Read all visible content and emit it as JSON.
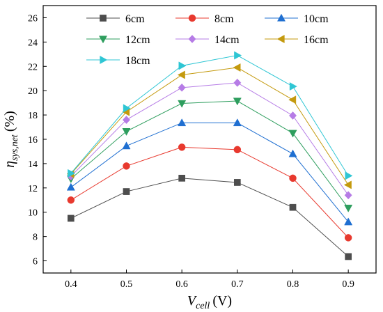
{
  "chart_data": {
    "type": "line",
    "x": [
      0.4,
      0.5,
      0.6,
      0.7,
      0.8,
      0.9
    ],
    "xlim": [
      0.35,
      0.95
    ],
    "ylim": [
      5,
      27
    ],
    "xticks": [
      "0.4",
      "0.5",
      "0.6",
      "0.7",
      "0.8",
      "0.9"
    ],
    "yticks": [
      "6",
      "8",
      "10",
      "12",
      "14",
      "16",
      "18",
      "20",
      "22",
      "24",
      "26"
    ],
    "xlabel": {
      "main": "V",
      "sub": "cell",
      "unit": "(V)"
    },
    "ylabel": {
      "main": "η",
      "sub": "sys,net",
      "unit": "(%)"
    },
    "grid": false,
    "legend_position": "top",
    "series": [
      {
        "name": "6cm",
        "color": "#4d4d4d",
        "marker": "square",
        "values": [
          9.5,
          11.7,
          12.8,
          12.45,
          10.4,
          6.35
        ]
      },
      {
        "name": "8cm",
        "color": "#e8392e",
        "marker": "circle",
        "values": [
          11.0,
          13.8,
          15.35,
          15.15,
          12.8,
          7.9
        ]
      },
      {
        "name": "10cm",
        "color": "#1f6fd1",
        "marker": "triangle-up",
        "values": [
          12.05,
          15.45,
          17.35,
          17.35,
          14.8,
          9.2
        ]
      },
      {
        "name": "12cm",
        "color": "#2e9e5e",
        "marker": "triangle-down",
        "values": [
          12.75,
          16.65,
          18.95,
          19.15,
          16.5,
          10.35
        ]
      },
      {
        "name": "14cm",
        "color": "#b67ce6",
        "marker": "diamond",
        "values": [
          12.95,
          17.6,
          20.25,
          20.65,
          17.95,
          11.4
        ]
      },
      {
        "name": "16cm",
        "color": "#c49a0e",
        "marker": "triangle-left",
        "values": [
          13.15,
          18.25,
          21.3,
          21.9,
          19.25,
          12.25
        ]
      },
      {
        "name": "18cm",
        "color": "#2fc6d4",
        "marker": "triangle-right",
        "values": [
          13.2,
          18.55,
          22.05,
          22.9,
          20.35,
          13.0
        ]
      }
    ]
  }
}
